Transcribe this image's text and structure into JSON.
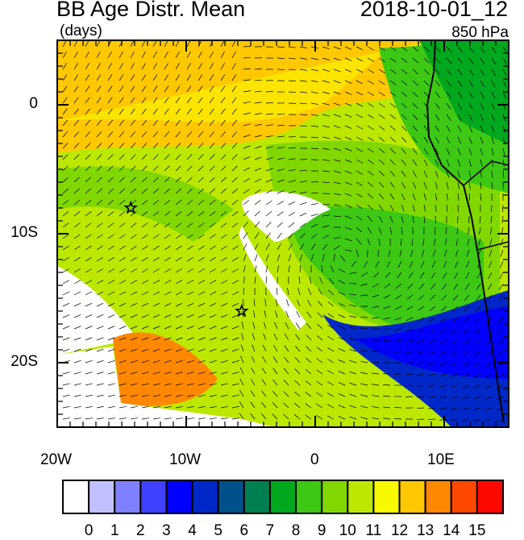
{
  "title": "BB Age Distr. Mean",
  "subtitle_units": "(days)",
  "date": "2018-10-01_12",
  "level": "850 hPa",
  "map": {
    "lon_range": [
      -20,
      15
    ],
    "lat_range": [
      -25,
      5
    ],
    "lat_labels": [
      "0",
      "10S",
      "20S"
    ],
    "lon_labels": [
      "20W",
      "10W",
      "0",
      "10E"
    ],
    "markers": [
      {
        "name": "star",
        "lon": -14.3,
        "lat": -8.0
      },
      {
        "name": "star",
        "lon": -5.7,
        "lat": -16.0
      }
    ]
  },
  "colorbar": {
    "labels": [
      "0",
      "1",
      "2",
      "3",
      "4",
      "5",
      "6",
      "7",
      "8",
      "9",
      "10",
      "11",
      "12",
      "13",
      "14",
      "15"
    ],
    "colors": [
      "#ffffff",
      "#c0c0ff",
      "#8080ff",
      "#4040ff",
      "#0000ff",
      "#0028c8",
      "#00508c",
      "#008050",
      "#00a81e",
      "#3cc814",
      "#80d800",
      "#bce800",
      "#f8f800",
      "#ffc800",
      "#ff8800",
      "#ff4800",
      "#ff0800"
    ]
  }
}
